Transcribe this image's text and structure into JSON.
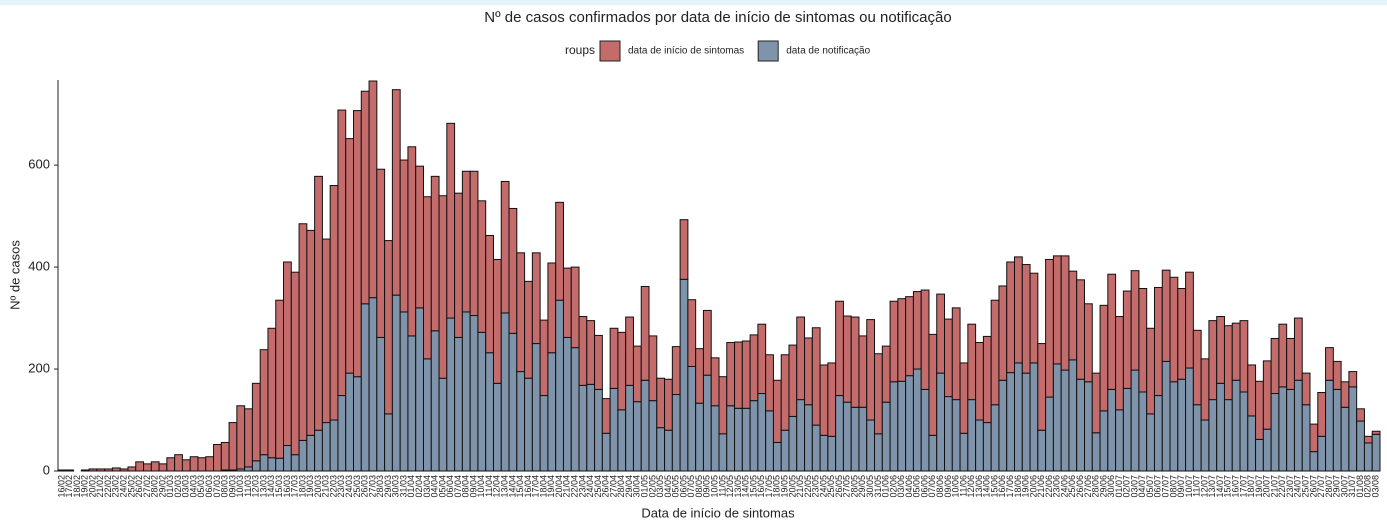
{
  "chart_data": {
    "type": "stacked_bar",
    "title": "Nº de casos confirmados por data de início de sintomas ou notificação",
    "legend_title": "roups",
    "x_label": "Data de início de sintomas",
    "y_label": "Nº de casos",
    "categories": [
      "16/02",
      "17/02",
      "18/02",
      "19/02",
      "20/02",
      "21/02",
      "22/02",
      "23/02",
      "24/02",
      "25/02",
      "26/02",
      "27/02",
      "28/02",
      "29/02",
      "01/03",
      "02/03",
      "03/03",
      "04/03",
      "05/03",
      "06/03",
      "07/03",
      "08/03",
      "09/03",
      "10/03",
      "11/03",
      "12/03",
      "13/03",
      "14/03",
      "15/03",
      "16/03",
      "17/03",
      "18/03",
      "19/03",
      "20/03",
      "21/03",
      "22/03",
      "23/03",
      "24/03",
      "25/03",
      "26/03",
      "27/03",
      "28/03",
      "29/03",
      "30/03",
      "31/03",
      "01/04",
      "02/04",
      "03/04",
      "04/04",
      "05/04",
      "06/04",
      "07/04",
      "08/04",
      "09/04",
      "10/04",
      "11/04",
      "12/04",
      "13/04",
      "14/04",
      "15/04",
      "16/04",
      "17/04",
      "18/04",
      "19/04",
      "20/04",
      "21/04",
      "22/04",
      "23/04",
      "24/04",
      "25/04",
      "26/04",
      "27/04",
      "28/04",
      "29/04",
      "30/04",
      "01/05",
      "02/05",
      "03/05",
      "04/05",
      "05/05",
      "06/05",
      "07/05",
      "08/05",
      "09/05",
      "10/05",
      "11/05",
      "12/05",
      "13/05",
      "14/05",
      "15/05",
      "16/05",
      "17/05",
      "18/05",
      "19/05",
      "20/05",
      "21/05",
      "22/05",
      "23/05",
      "24/05",
      "25/05",
      "26/05",
      "27/05",
      "28/05",
      "29/05",
      "30/05",
      "31/05",
      "01/06",
      "02/06",
      "03/06",
      "04/06",
      "05/06",
      "06/06",
      "07/06",
      "08/06",
      "09/06",
      "10/06",
      "11/06",
      "12/06",
      "13/06",
      "14/06",
      "15/06",
      "16/06",
      "17/06",
      "18/06",
      "19/06",
      "20/06",
      "21/06",
      "22/06",
      "23/06",
      "24/06",
      "25/06",
      "26/06",
      "27/06",
      "28/06",
      "29/06",
      "30/06",
      "01/07",
      "02/07",
      "03/07",
      "04/07",
      "05/07",
      "06/07",
      "07/07",
      "08/07",
      "09/07",
      "10/07",
      "11/07",
      "12/07",
      "13/07",
      "14/07",
      "15/07",
      "16/07",
      "17/07",
      "18/07",
      "19/07",
      "20/07",
      "21/07",
      "22/07",
      "23/07",
      "24/07",
      "25/07",
      "26/07",
      "27/07",
      "28/07",
      "29/07",
      "30/07",
      "31/07",
      "01/08",
      "02/08",
      "03/08"
    ],
    "series": [
      {
        "name": "data de início de sintomas",
        "color": "#c46b6b",
        "values": [
          0,
          0,
          0,
          2,
          4,
          4,
          4,
          6,
          4,
          8,
          18,
          14,
          18,
          14,
          26,
          32,
          22,
          28,
          26,
          28,
          52,
          54,
          93,
          124,
          114,
          152,
          206,
          254,
          310,
          360,
          358,
          425,
          402,
          498,
          360,
          460,
          560,
          460,
          522,
          417,
          425,
          330,
          340,
          403,
          298,
          371,
          278,
          318,
          303,
          358,
          382,
          283,
          276,
          283,
          258,
          230,
          243,
          258,
          245,
          233,
          190,
          178,
          148,
          176,
          192,
          136,
          158,
          135,
          125,
          106,
          68,
          118,
          152,
          134,
          109,
          184,
          127,
          97,
          100,
          94,
          117,
          131,
          107,
          127,
          94,
          112,
          124,
          130,
          132,
          129,
          136,
          110,
          122,
          148,
          140,
          162,
          131,
          191,
          138,
          144,
          185,
          169,
          177,
          140,
          197,
          157,
          110,
          158,
          162,
          155,
          152,
          195,
          198,
          155,
          152,
          180,
          138,
          148,
          152,
          169,
          205,
          185,
          217,
          208,
          213,
          176,
          170,
          270,
          212,
          224,
          174,
          195,
          153,
          117,
          207,
          226,
          183,
          191,
          195,
          203,
          168,
          212,
          179,
          205,
          178,
          188,
          146,
          120,
          155,
          131,
          145,
          112,
          140,
          100,
          114,
          134,
          108,
          123,
          100,
          122,
          62,
          54,
          86,
          64,
          55,
          50,
          30,
          24,
          13,
          6
        ]
      },
      {
        "name": "data de notificação",
        "color": "#7f94ab",
        "values": [
          2,
          2,
          0,
          0,
          0,
          0,
          0,
          0,
          0,
          0,
          0,
          0,
          0,
          0,
          0,
          0,
          0,
          0,
          0,
          0,
          0,
          2,
          2,
          4,
          8,
          20,
          32,
          26,
          25,
          50,
          32,
          60,
          70,
          80,
          95,
          100,
          148,
          192,
          185,
          328,
          340,
          262,
          112,
          345,
          312,
          265,
          320,
          220,
          275,
          182,
          300,
          262,
          312,
          305,
          272,
          232,
          172,
          310,
          270,
          195,
          182,
          250,
          148,
          232,
          335,
          262,
          242,
          168,
          170,
          160,
          74,
          162,
          120,
          168,
          136,
          178,
          138,
          85,
          80,
          150,
          376,
          205,
          133,
          188,
          128,
          73,
          128,
          123,
          123,
          138,
          152,
          118,
          56,
          80,
          107,
          140,
          130,
          90,
          70,
          68,
          148,
          135,
          125,
          125,
          100,
          73,
          135,
          175,
          176,
          187,
          200,
          160,
          70,
          192,
          146,
          140,
          74,
          140,
          100,
          95,
          130,
          178,
          193,
          212,
          192,
          212,
          80,
          145,
          210,
          198,
          218,
          180,
          175,
          75,
          118,
          160,
          120,
          162,
          198,
          155,
          112,
          148,
          215,
          175,
          180,
          202,
          130,
          100,
          140,
          172,
          140,
          178,
          155,
          108,
          62,
          82,
          152,
          165,
          160,
          178,
          130,
          38,
          68,
          178,
          160,
          125,
          165,
          98,
          55,
          72
        ]
      }
    ],
    "ylim": [
      0,
      767
    ],
    "yticks": [
      0,
      200,
      400,
      600
    ],
    "grid": false
  }
}
